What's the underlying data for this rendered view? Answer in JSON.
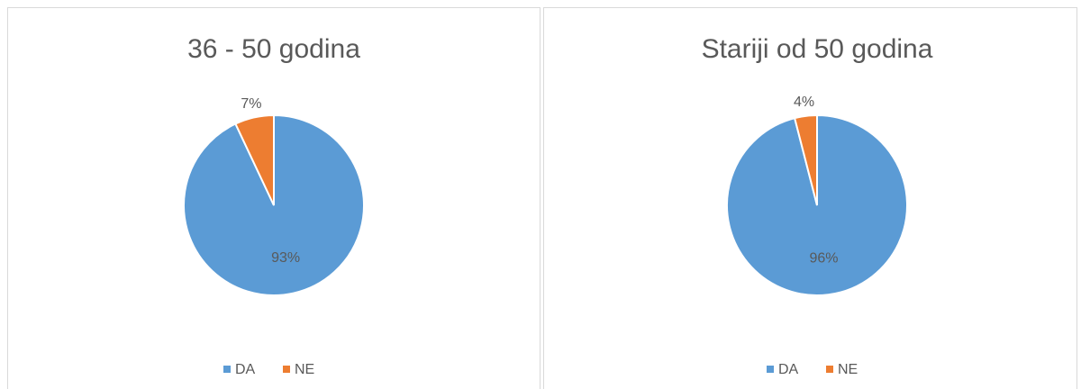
{
  "chart_data": [
    {
      "type": "pie",
      "title": "36 - 50 godina",
      "categories": [
        "DA",
        "NE"
      ],
      "values": [
        93,
        7
      ],
      "value_labels": [
        "93%",
        "7%"
      ],
      "colors": [
        "#5b9bd5",
        "#ed7d31"
      ],
      "legend": "bottom"
    },
    {
      "type": "pie",
      "title": "Stariji od 50 godina",
      "categories": [
        "DA",
        "NE"
      ],
      "values": [
        96,
        4
      ],
      "value_labels": [
        "96%",
        "4%"
      ],
      "colors": [
        "#5b9bd5",
        "#ed7d31"
      ],
      "legend": "bottom"
    }
  ]
}
